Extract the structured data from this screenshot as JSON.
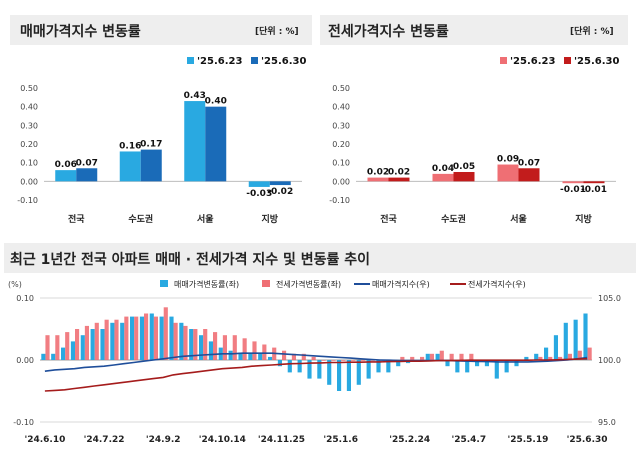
{
  "panels": {
    "sale": {
      "title": "매매가격지수 변동률",
      "unit": "[단위 : %]"
    },
    "jeonse": {
      "title": "전세가격지수 변동률",
      "unit": "[단위 : %]"
    },
    "trend": {
      "title": "최근 1년간 전국 아파트 매매 · 전세가격 지수 및 변동률 추이"
    }
  },
  "colors": {
    "sale_prev": "#29a9e1",
    "sale_curr": "#1a6bb8",
    "jeonse_prev": "#ef6f74",
    "jeonse_curr": "#c21c1c",
    "sale_index_line": "#1f4e9a",
    "jeonse_index_line": "#a51c1c",
    "grid": "#d9d9d9",
    "title_bar": "#eeeeee"
  },
  "chart_data": [
    {
      "id": "sale",
      "type": "bar",
      "categories": [
        "전국",
        "수도권",
        "서울",
        "지방"
      ],
      "series": [
        {
          "name": "'25.6.23",
          "values": [
            0.06,
            0.16,
            0.43,
            -0.03
          ],
          "labels": [
            "0.06",
            "0.16",
            "0.43",
            "-0.03"
          ]
        },
        {
          "name": "'25.6.30",
          "values": [
            0.07,
            0.17,
            0.4,
            -0.02
          ],
          "labels": [
            "0.07",
            "0.17",
            "0.40",
            "-0.02"
          ]
        }
      ],
      "ylim": [
        -0.1,
        0.5
      ],
      "yticks": [
        -0.1,
        0.0,
        0.1,
        0.2,
        0.3,
        0.4,
        0.5
      ],
      "ytick_labels": [
        "-0.10",
        "0.00",
        "0.10",
        "0.20",
        "0.30",
        "0.40",
        "0.50"
      ],
      "legend": "top-right",
      "grid": false
    },
    {
      "id": "jeonse",
      "type": "bar",
      "categories": [
        "전국",
        "수도권",
        "서울",
        "지방"
      ],
      "series": [
        {
          "name": "'25.6.23",
          "values": [
            0.02,
            0.04,
            0.09,
            -0.01
          ],
          "labels": [
            "0.02",
            "0.04",
            "0.09",
            "-0.01"
          ]
        },
        {
          "name": "'25.6.30",
          "values": [
            0.02,
            0.05,
            0.07,
            -0.01
          ],
          "labels": [
            "0.02",
            "0.05",
            "0.07",
            "-0.01"
          ]
        }
      ],
      "ylim": [
        -0.1,
        0.5
      ],
      "yticks": [
        -0.1,
        0.0,
        0.1,
        0.2,
        0.3,
        0.4,
        0.5
      ],
      "ytick_labels": [
        "-0.10",
        "0.00",
        "0.10",
        "0.20",
        "0.30",
        "0.40",
        "0.50"
      ],
      "legend": "top-right",
      "grid": false
    },
    {
      "id": "trend",
      "type": "bar",
      "y_unit": "(%)",
      "x_tick_labels": [
        "'24.6.10",
        "'24.7.22",
        "'24.9.2",
        "'24.10.14",
        "'24.11.25",
        "'25.1.6",
        "'25.2.24",
        "'25.4.7",
        "'25.5.19",
        "'25.6.30"
      ],
      "x_tick_positions": [
        0,
        6,
        12,
        18,
        24,
        30,
        37,
        43,
        49,
        55
      ],
      "ylim": [
        -0.1,
        0.1
      ],
      "yticks": [
        -0.1,
        0.0,
        0.1
      ],
      "ytick_labels": [
        "-0.10",
        "0.00",
        "0.10"
      ],
      "y2lim": [
        95.0,
        105.0
      ],
      "y2ticks": [
        95.0,
        100.0,
        105.0
      ],
      "y2tick_labels": [
        "95.0",
        "100.0",
        "105.0"
      ],
      "legend": "top",
      "grid": true,
      "series": [
        {
          "name": "매매가격변동률(좌)",
          "kind": "bar",
          "values": [
            0.01,
            0.01,
            0.02,
            0.03,
            0.04,
            0.05,
            0.05,
            0.06,
            0.06,
            0.07,
            0.07,
            0.075,
            0.07,
            0.07,
            0.06,
            0.05,
            0.04,
            0.03,
            0.02,
            0.015,
            0.012,
            0.01,
            0.01,
            0.005,
            -0.01,
            -0.02,
            -0.02,
            -0.03,
            -0.03,
            -0.04,
            -0.05,
            -0.05,
            -0.04,
            -0.03,
            -0.02,
            -0.02,
            -0.01,
            -0.005,
            0.0,
            0.01,
            0.01,
            -0.01,
            -0.02,
            -0.02,
            -0.01,
            -0.01,
            -0.03,
            -0.02,
            -0.01,
            0.005,
            0.01,
            0.02,
            0.04,
            0.06,
            0.065,
            0.075
          ]
        },
        {
          "name": "전세가격변동률(좌)",
          "kind": "bar",
          "values": [
            0.04,
            0.04,
            0.045,
            0.05,
            0.055,
            0.06,
            0.065,
            0.065,
            0.07,
            0.07,
            0.075,
            0.07,
            0.085,
            0.06,
            0.055,
            0.05,
            0.05,
            0.045,
            0.04,
            0.04,
            0.035,
            0.03,
            0.025,
            0.02,
            0.015,
            0.01,
            0.01,
            0.005,
            0.0,
            0.0,
            0.0,
            0.0,
            0.0,
            0.0,
            0.0,
            0.0,
            0.005,
            0.005,
            0.005,
            0.01,
            0.015,
            0.01,
            0.01,
            0.01,
            0.0,
            0.0,
            0.0,
            0.0,
            0.0,
            0.0,
            0.005,
            0.005,
            0.005,
            0.01,
            0.015,
            0.02
          ]
        },
        {
          "name": "매매가격지수(우)",
          "kind": "line",
          "values": [
            99.1,
            99.2,
            99.25,
            99.3,
            99.4,
            99.45,
            99.5,
            99.6,
            99.7,
            99.8,
            99.9,
            100.0,
            100.1,
            100.2,
            100.3,
            100.35,
            100.4,
            100.45,
            100.5,
            100.5,
            100.55,
            100.55,
            100.55,
            100.55,
            100.5,
            100.45,
            100.4,
            100.35,
            100.3,
            100.25,
            100.2,
            100.15,
            100.1,
            100.05,
            100.0,
            99.98,
            99.95,
            99.95,
            99.95,
            99.95,
            99.95,
            99.95,
            99.92,
            99.9,
            99.88,
            99.87,
            99.85,
            99.85,
            99.85,
            99.85,
            99.87,
            99.9,
            99.95,
            100.0,
            100.1,
            100.2
          ]
        },
        {
          "name": "전세가격지수(우)",
          "kind": "line",
          "values": [
            97.5,
            97.55,
            97.6,
            97.7,
            97.8,
            97.9,
            98.0,
            98.1,
            98.2,
            98.3,
            98.4,
            98.5,
            98.6,
            98.8,
            98.9,
            99.0,
            99.1,
            99.2,
            99.3,
            99.35,
            99.4,
            99.5,
            99.55,
            99.6,
            99.65,
            99.7,
            99.72,
            99.75,
            99.77,
            99.8,
            99.8,
            99.82,
            99.82,
            99.85,
            99.85,
            99.87,
            99.88,
            99.9,
            99.9,
            99.92,
            99.95,
            99.95,
            99.97,
            99.98,
            99.98,
            99.98,
            99.98,
            99.98,
            99.98,
            99.98,
            100.0,
            100.0,
            100.02,
            100.05,
            100.07,
            100.1
          ]
        }
      ]
    }
  ]
}
